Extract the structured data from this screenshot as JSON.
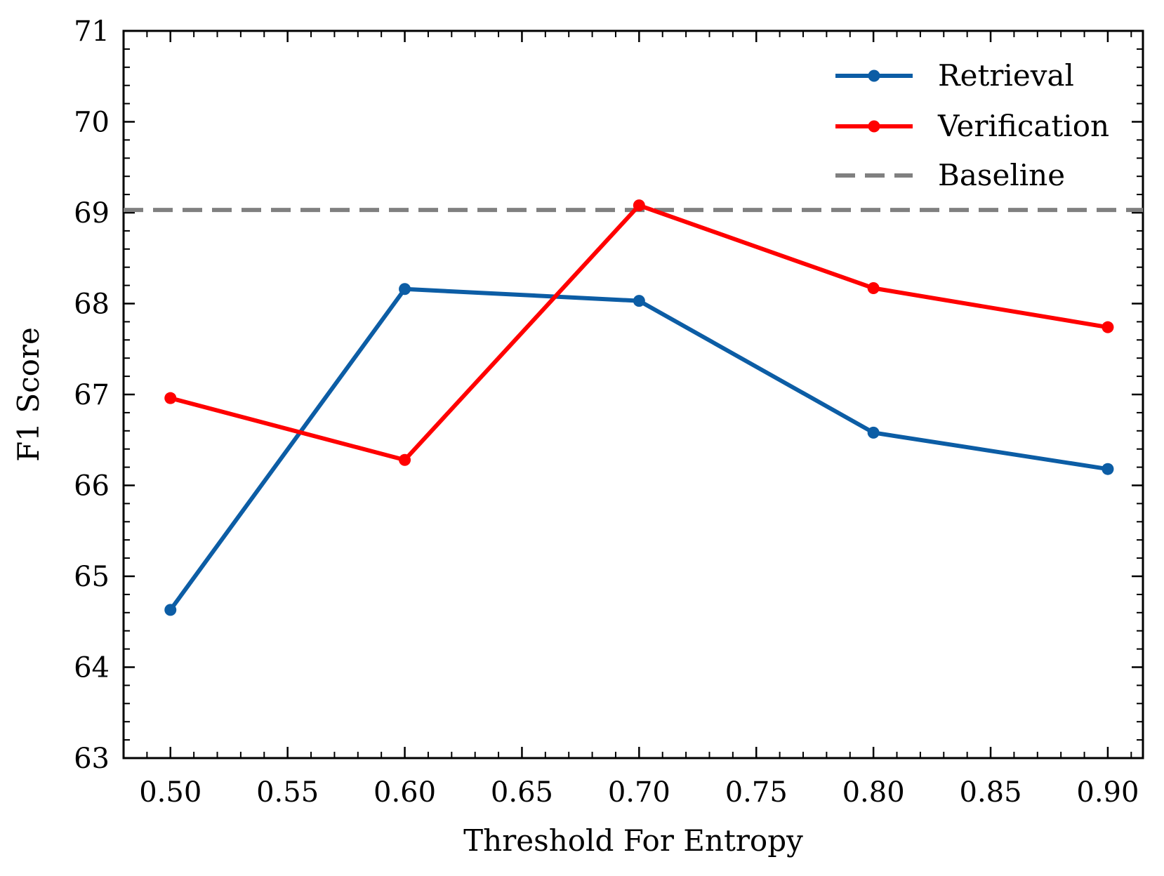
{
  "chart_data": {
    "type": "line",
    "title": "",
    "xlabel": "Threshold For Entropy",
    "ylabel": "F1 Score",
    "xlim": [
      0.48,
      0.915
    ],
    "ylim": [
      63,
      71
    ],
    "x_ticks": [
      "0.50",
      "0.55",
      "0.60",
      "0.65",
      "0.70",
      "0.75",
      "0.80",
      "0.85",
      "0.90"
    ],
    "y_ticks": [
      "63",
      "64",
      "65",
      "66",
      "67",
      "68",
      "69",
      "70",
      "71"
    ],
    "x": [
      0.5,
      0.6,
      0.7,
      0.8,
      0.9
    ],
    "series": [
      {
        "name": "Retrieval",
        "color": "#0C5DA5",
        "values": [
          64.63,
          68.16,
          68.03,
          66.58,
          66.18
        ]
      },
      {
        "name": "Verification",
        "color": "#FF0000",
        "values": [
          66.96,
          66.28,
          69.08,
          68.17,
          67.74
        ]
      }
    ],
    "baseline": {
      "name": "Baseline",
      "color": "#808080",
      "value": 69.03,
      "style": "dashed"
    },
    "legend_position": "top-right",
    "grid": false
  }
}
